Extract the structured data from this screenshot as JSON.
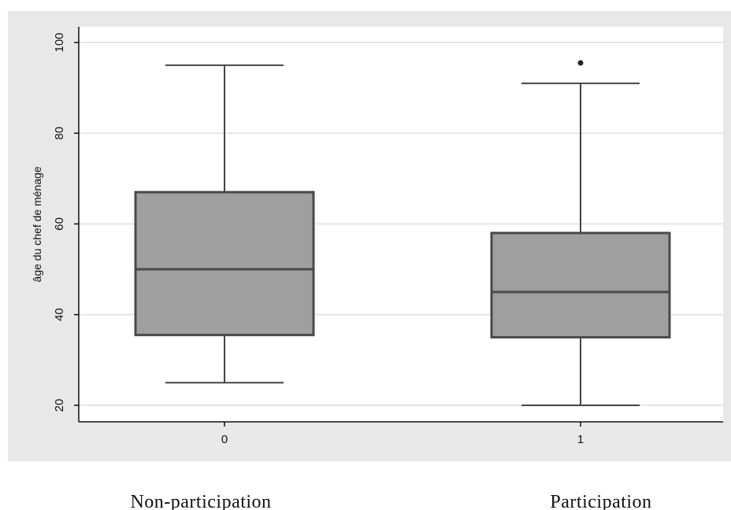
{
  "chart_data": {
    "type": "box",
    "ylabel": "âge du chef de ménage",
    "xlabel": "",
    "ylim": [
      20,
      100
    ],
    "yticks": [
      "20",
      "40",
      "60",
      "80",
      "100"
    ],
    "grid": true,
    "categories": [
      "0",
      "1"
    ],
    "group_captions": [
      "Non-participation",
      "Participation"
    ],
    "boxes": [
      {
        "category": "0",
        "whisker_low": 25,
        "q1": 35.5,
        "median": 50,
        "q3": 67,
        "whisker_high": 95,
        "outliers": []
      },
      {
        "category": "1",
        "whisker_low": 20,
        "q1": 35,
        "median": 45,
        "q3": 58,
        "whisker_high": 91,
        "outliers": [
          95.5
        ]
      }
    ]
  },
  "colors": {
    "background": "#e8e8e8",
    "plot_area": "#ffffff",
    "gridline": "#e6e6e6",
    "box_fill": "#9f9f9f",
    "box_stroke": "#4a4a4a",
    "whisker": "#444444"
  }
}
